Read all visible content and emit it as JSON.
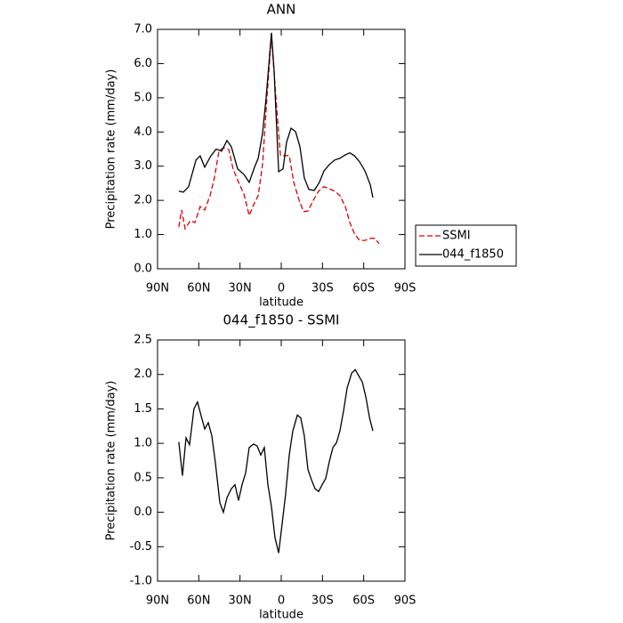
{
  "chart_data": [
    {
      "type": "line",
      "title": "ANN",
      "x_label": "latitude",
      "y_label": "Precipitation rate (mm/day)",
      "xlim": [
        90,
        -90
      ],
      "xticks": [
        {
          "value": 90,
          "label": "90N"
        },
        {
          "value": 60,
          "label": "60N"
        },
        {
          "value": 30,
          "label": "30N"
        },
        0,
        {
          "value": -30,
          "label": "30S"
        },
        {
          "value": -60,
          "label": "60S"
        },
        {
          "value": -90,
          "label": "90S"
        }
      ],
      "ylim": [
        0,
        7
      ],
      "yticks": [
        {
          "value": 0,
          "label": "0.0"
        },
        {
          "value": 1,
          "label": "1.0"
        },
        {
          "value": 2,
          "label": "2.0"
        },
        {
          "value": 3,
          "label": "3.0"
        },
        {
          "value": 4,
          "label": "4.0"
        },
        {
          "value": 5,
          "label": "5.0"
        },
        {
          "value": 6,
          "label": "6.0"
        },
        {
          "value": 7,
          "label": "7.0"
        }
      ],
      "legend": "outside-right",
      "series": [
        {
          "name": "SSMI",
          "color": "#e00000",
          "linestyle": "dashed",
          "x": [
            74.5,
            72.5,
            69.9,
            66.1,
            62.8,
            59,
            55.7,
            51.8,
            48.6,
            45.3,
            42.1,
            38.2,
            35,
            31.1,
            27.2,
            23.3,
            20.1,
            16.8,
            13.6,
            10.4,
            7.1,
            3.9,
            0.6,
            -2.6,
            -5.8,
            -9.1,
            -13,
            -16.2,
            -19.4,
            -23.3,
            -27.2,
            -31.1,
            -35,
            -38.9,
            -42.7,
            -46.6,
            -49.9,
            -53.1,
            -57,
            -60.9,
            -64.8,
            -68,
            -71.2
          ],
          "values": [
            1.22,
            1.72,
            1.17,
            1.41,
            1.35,
            1.82,
            1.72,
            2.14,
            2.66,
            3.44,
            3.54,
            3.49,
            2.92,
            2.53,
            2.19,
            1.56,
            1.88,
            2.14,
            3.05,
            5.0,
            6.82,
            5.0,
            3.31,
            3.31,
            3.31,
            2.53,
            2.0,
            1.67,
            1.69,
            2.0,
            2.27,
            2.4,
            2.34,
            2.27,
            2.14,
            1.82,
            1.35,
            1.04,
            0.83,
            0.83,
            0.89,
            0.89,
            0.73
          ]
        },
        {
          "name": "044_f1850",
          "color": "#000000",
          "linestyle": "solid",
          "x": [
            74.5,
            71.2,
            67.4,
            62,
            59,
            55.7,
            51.2,
            47.3,
            43.4,
            39.5,
            36.3,
            31.7,
            27.2,
            23.3,
            19.4,
            16.8,
            13.6,
            11,
            7.1,
            5.2,
            1.9,
            -1.3,
            -3.9,
            -7.1,
            -10.4,
            -13.6,
            -16.8,
            -20.1,
            -24,
            -27.8,
            -31.1,
            -35,
            -38.9,
            -42.7,
            -46.6,
            -49.9,
            -53.1,
            -57,
            -60.9,
            -64.8,
            -66.7
          ],
          "values": [
            2.27,
            2.24,
            2.4,
            3.18,
            3.3,
            2.97,
            3.3,
            3.5,
            3.44,
            3.75,
            3.57,
            2.92,
            2.76,
            2.53,
            2.97,
            3.23,
            3.96,
            5.0,
            6.9,
            5.78,
            2.84,
            2.92,
            3.7,
            4.11,
            4.01,
            3.57,
            2.66,
            2.32,
            2.29,
            2.53,
            2.86,
            3.05,
            3.18,
            3.23,
            3.33,
            3.39,
            3.31,
            3.13,
            2.86,
            2.45,
            2.08
          ]
        }
      ]
    },
    {
      "type": "line",
      "title": "044_f1850 - SSMI",
      "x_label": "latitude",
      "y_label": "Precipitation rate (mm/day)",
      "xlim": [
        90,
        -90
      ],
      "xticks": [
        {
          "value": 90,
          "label": "90N"
        },
        {
          "value": 60,
          "label": "60N"
        },
        {
          "value": 30,
          "label": "30N"
        },
        0,
        {
          "value": -30,
          "label": "30S"
        },
        {
          "value": -60,
          "label": "60S"
        },
        {
          "value": -90,
          "label": "90S"
        }
      ],
      "ylim": [
        -1,
        2.5
      ],
      "yticks": [
        {
          "value": -1,
          "label": "-1.0"
        },
        -0.5,
        {
          "value": 0,
          "label": "0.0"
        },
        0.5,
        {
          "value": 1,
          "label": "1.0"
        },
        1.5,
        {
          "value": 2,
          "label": "2.0"
        },
        2.5
      ],
      "series": [
        {
          "color": "#000000",
          "linestyle": "solid",
          "x": [
            74.5,
            71.9,
            69.3,
            66.7,
            63.5,
            60.9,
            58.3,
            55.7,
            53.1,
            50.5,
            47.9,
            44.7,
            42.1,
            39.5,
            36.3,
            33.7,
            31.1,
            28.5,
            25.9,
            23.3,
            20.1,
            17.5,
            14.9,
            12.3,
            9.7,
            7.1,
            4.5,
            1.9,
            -0.6,
            -3.2,
            -5.8,
            -8.4,
            -11.7,
            -14.2,
            -16.8,
            -19.4,
            -22,
            -24.6,
            -27.2,
            -29.8,
            -32.4,
            -35,
            -37.6,
            -40.2,
            -42.7,
            -45.3,
            -47.9,
            -51.2,
            -53.8,
            -56.4,
            -59,
            -61.6,
            -64.2,
            -66.7
          ],
          "values": [
            1.02,
            0.53,
            1.08,
            0.98,
            1.5,
            1.6,
            1.4,
            1.21,
            1.3,
            1.11,
            0.72,
            0.14,
            0.0,
            0.21,
            0.34,
            0.4,
            0.17,
            0.4,
            0.57,
            0.94,
            0.99,
            0.96,
            0.83,
            0.94,
            0.4,
            0.08,
            -0.37,
            -0.59,
            -0.18,
            0.26,
            0.83,
            1.18,
            1.41,
            1.37,
            1.11,
            0.62,
            0.47,
            0.34,
            0.3,
            0.4,
            0.49,
            0.74,
            0.94,
            1.01,
            1.18,
            1.47,
            1.8,
            2.02,
            2.07,
            1.98,
            1.89,
            1.67,
            1.37,
            1.18
          ]
        }
      ]
    }
  ]
}
